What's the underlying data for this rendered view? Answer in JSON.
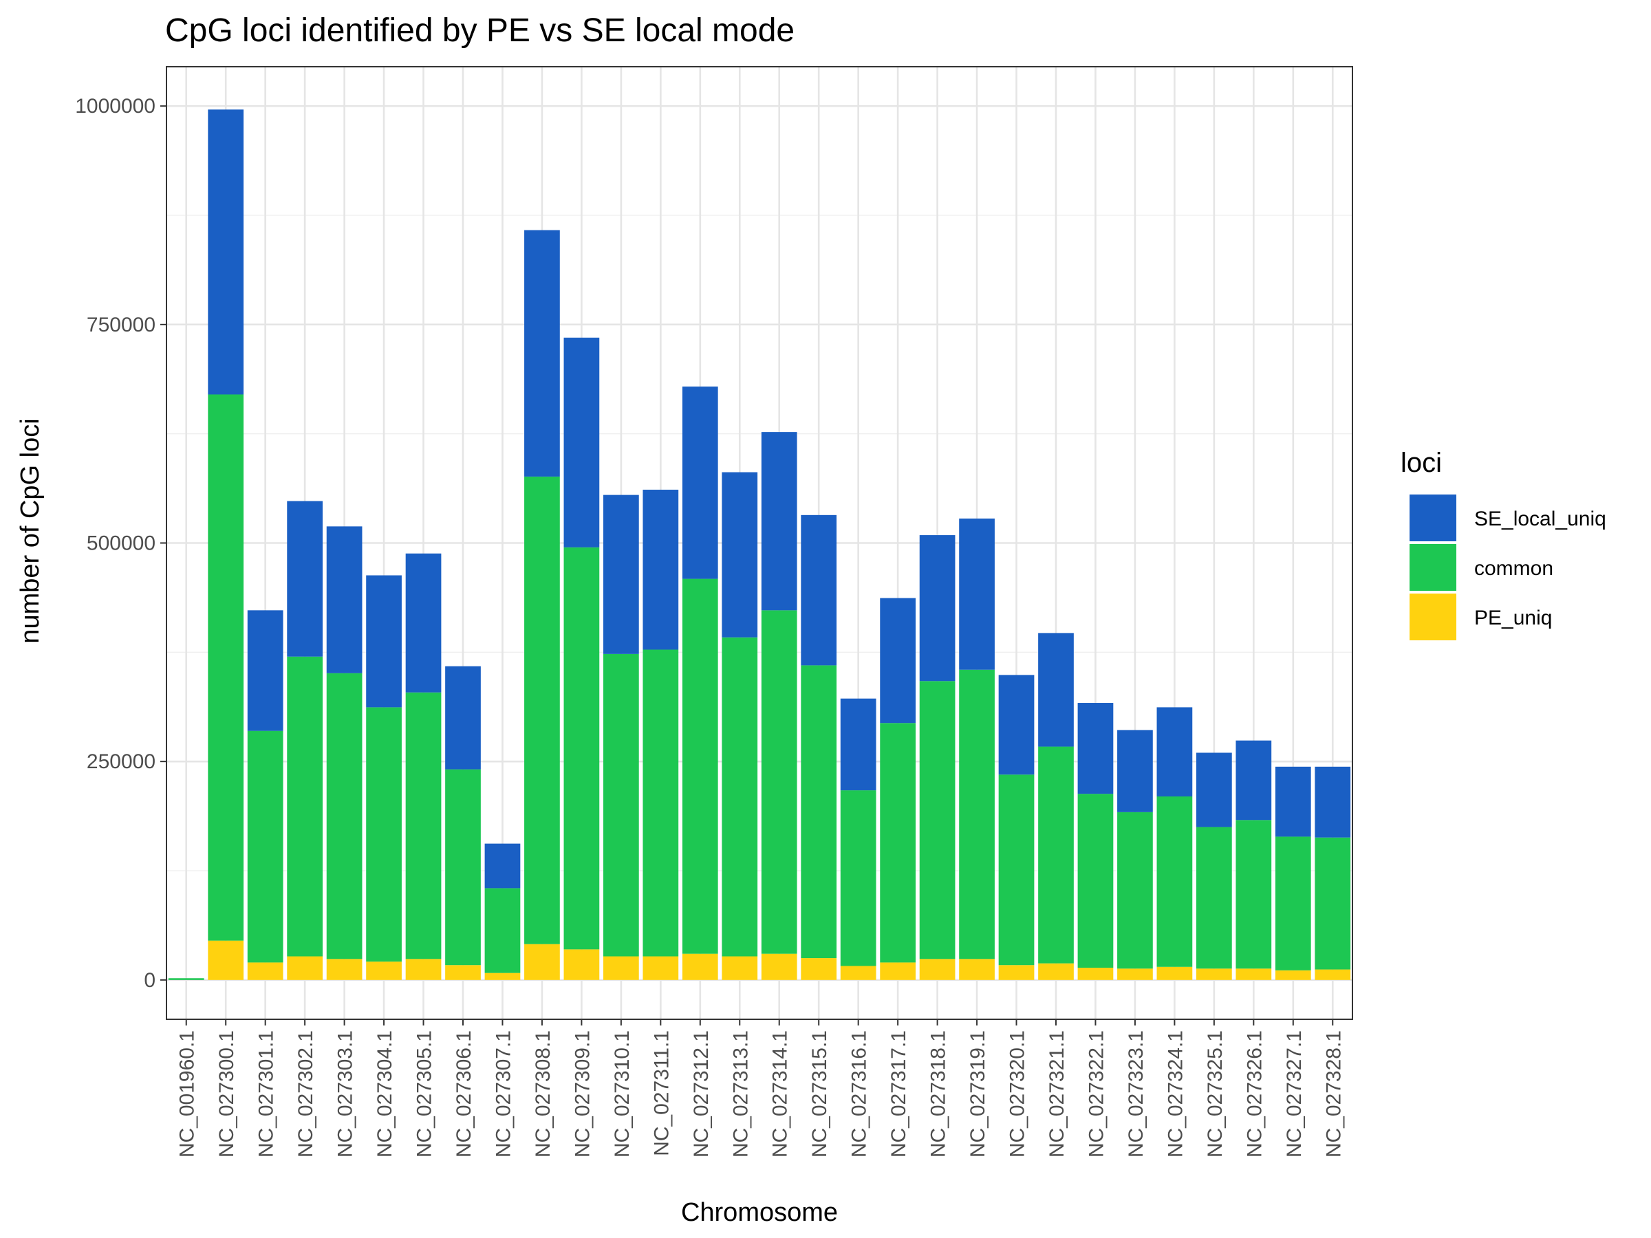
{
  "chart_data": {
    "type": "bar",
    "stacked": true,
    "title": "CpG loci identified by PE vs SE local mode",
    "xlabel": "Chromosome",
    "ylabel": "number of CpG loci",
    "ylim": [
      -45000,
      1045000
    ],
    "yticks": [
      0,
      250000,
      500000,
      750000,
      1000000
    ],
    "ytick_labels": [
      "0",
      "250000",
      "500000",
      "750000",
      "1000000"
    ],
    "grid": true,
    "legend": {
      "title": "loci",
      "position": "right"
    },
    "categories": [
      "NC_001960.1",
      "NC_027300.1",
      "NC_027301.1",
      "NC_027302.1",
      "NC_027303.1",
      "NC_027304.1",
      "NC_027305.1",
      "NC_027306.1",
      "NC_027307.1",
      "NC_027308.1",
      "NC_027309.1",
      "NC_027310.1",
      "NC_027311.1",
      "NC_027312.1",
      "NC_027313.1",
      "NC_027314.1",
      "NC_027315.1",
      "NC_027316.1",
      "NC_027317.1",
      "NC_027318.1",
      "NC_027319.1",
      "NC_027320.1",
      "NC_027321.1",
      "NC_027322.1",
      "NC_027323.1",
      "NC_027324.1",
      "NC_027325.1",
      "NC_027326.1",
      "NC_027327.1",
      "NC_027328.1"
    ],
    "series": [
      {
        "name": "PE_uniq",
        "color": "#FFD20F",
        "values": [
          0,
          45000,
          20000,
          27000,
          24000,
          21000,
          24000,
          17000,
          8000,
          41000,
          35000,
          27000,
          27000,
          30000,
          27000,
          30000,
          25000,
          16000,
          20000,
          24000,
          24000,
          17000,
          19000,
          14000,
          13000,
          15000,
          13000,
          13000,
          11000,
          12000
        ]
      },
      {
        "name": "common",
        "color": "#1DC752",
        "values": [
          2000,
          625000,
          265000,
          343000,
          327000,
          291000,
          305000,
          224000,
          97000,
          535000,
          460000,
          346000,
          351000,
          429000,
          365000,
          393000,
          335000,
          201000,
          274000,
          318000,
          331000,
          218000,
          248000,
          199000,
          179000,
          195000,
          162000,
          170000,
          153000,
          151000
        ]
      },
      {
        "name": "SE_local_uniq",
        "color": "#1A5FC4",
        "values": [
          0,
          326000,
          138000,
          178000,
          168000,
          151000,
          159000,
          118000,
          51000,
          282000,
          240000,
          182000,
          183000,
          220000,
          189000,
          204000,
          172000,
          105000,
          143000,
          167000,
          173000,
          114000,
          130000,
          104000,
          94000,
          102000,
          85000,
          91000,
          80000,
          81000
        ]
      }
    ],
    "legend_order": [
      "SE_local_uniq",
      "common",
      "PE_uniq"
    ]
  }
}
